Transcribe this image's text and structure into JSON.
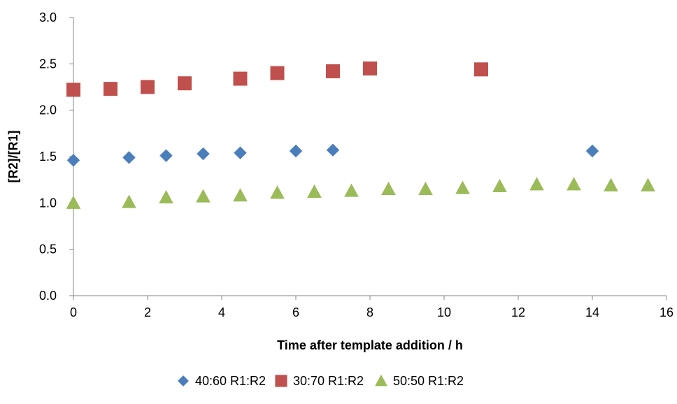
{
  "chart_data": {
    "type": "scatter",
    "title": "",
    "xlabel": "Time after template addition / h",
    "ylabel": "[R2]/[R1]",
    "xlim": [
      0,
      16
    ],
    "ylim": [
      0,
      3
    ],
    "x_ticks": [
      0,
      2,
      4,
      6,
      8,
      10,
      12,
      14,
      16
    ],
    "x_tick_labels": [
      "0",
      "2",
      "4",
      "6",
      "8",
      "10",
      "12",
      "14",
      "16"
    ],
    "y_ticks": [
      0,
      0.5,
      1,
      1.5,
      2,
      2.5,
      3
    ],
    "y_tick_labels": [
      "0.0",
      "0.5",
      "1.0",
      "1.5",
      "2.0",
      "2.5",
      "3.0"
    ],
    "grid": false,
    "legend_position": "bottom",
    "series": [
      {
        "name": "40:60 R1:R2",
        "marker": "diamond",
        "color": "#4a7ebb",
        "points": [
          {
            "x": 0,
            "y": 1.46
          },
          {
            "x": 1.5,
            "y": 1.49
          },
          {
            "x": 2.5,
            "y": 1.51
          },
          {
            "x": 3.5,
            "y": 1.53
          },
          {
            "x": 4.5,
            "y": 1.54
          },
          {
            "x": 6,
            "y": 1.56
          },
          {
            "x": 7,
            "y": 1.57
          },
          {
            "x": 14,
            "y": 1.56
          }
        ]
      },
      {
        "name": "30:70 R1:R2",
        "marker": "square",
        "color": "#c0504d",
        "points": [
          {
            "x": 0,
            "y": 2.22
          },
          {
            "x": 1,
            "y": 2.23
          },
          {
            "x": 2,
            "y": 2.25
          },
          {
            "x": 3,
            "y": 2.29
          },
          {
            "x": 4.5,
            "y": 2.34
          },
          {
            "x": 5.5,
            "y": 2.4
          },
          {
            "x": 7,
            "y": 2.42
          },
          {
            "x": 8,
            "y": 2.45
          },
          {
            "x": 11,
            "y": 2.44
          }
        ]
      },
      {
        "name": "50:50 R1:R2",
        "marker": "triangle",
        "color": "#9bbb59",
        "points": [
          {
            "x": 0,
            "y": 1.0
          },
          {
            "x": 1.5,
            "y": 1.01
          },
          {
            "x": 2.5,
            "y": 1.06
          },
          {
            "x": 3.5,
            "y": 1.07
          },
          {
            "x": 4.5,
            "y": 1.08
          },
          {
            "x": 5.5,
            "y": 1.11
          },
          {
            "x": 6.5,
            "y": 1.12
          },
          {
            "x": 7.5,
            "y": 1.13
          },
          {
            "x": 8.5,
            "y": 1.15
          },
          {
            "x": 9.5,
            "y": 1.15
          },
          {
            "x": 10.5,
            "y": 1.16
          },
          {
            "x": 11.5,
            "y": 1.18
          },
          {
            "x": 12.5,
            "y": 1.2
          },
          {
            "x": 13.5,
            "y": 1.2
          },
          {
            "x": 14.5,
            "y": 1.19
          },
          {
            "x": 15.5,
            "y": 1.19
          }
        ]
      }
    ]
  }
}
